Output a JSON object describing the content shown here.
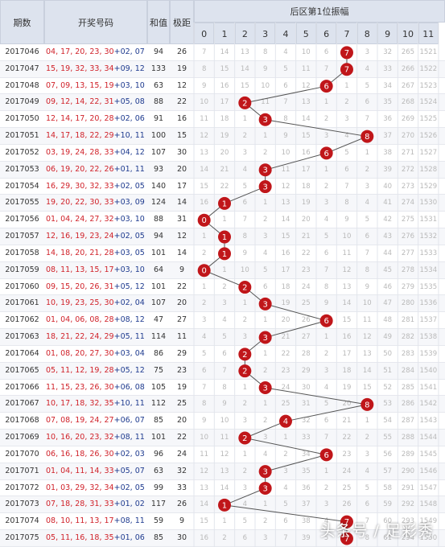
{
  "headers": {
    "period": "期数",
    "numbers": "开奖号码",
    "sum": "和值",
    "span": "极距",
    "zone": "后区第1位振幅",
    "cols": [
      "0",
      "1",
      "2",
      "3",
      "4",
      "5",
      "6",
      "7",
      "8",
      "9",
      "10",
      "11"
    ]
  },
  "colors": {
    "ball": "#c0161a",
    "line": "#555555",
    "front": "#d0222a",
    "back": "#1f3b8f",
    "header_bg": "#dde3ee"
  },
  "rows": [
    {
      "period": "2017046",
      "front": "04, 17, 20, 23, 30",
      "back": "+02, 07",
      "sum": "94",
      "span": "26",
      "pos": 7,
      "miss": [
        "7",
        "14",
        "13",
        "8",
        "4",
        "10",
        "6",
        "7",
        "3",
        "32",
        "265",
        "1521"
      ]
    },
    {
      "period": "2017047",
      "front": "15, 19, 32, 33, 34",
      "back": "+09, 12",
      "sum": "133",
      "span": "19",
      "pos": 7,
      "miss": [
        "8",
        "15",
        "14",
        "9",
        "5",
        "11",
        "7",
        "7",
        "4",
        "33",
        "266",
        "1522"
      ]
    },
    {
      "period": "2017048",
      "front": "07, 09, 13, 15, 19",
      "back": "+03, 10",
      "sum": "63",
      "span": "12",
      "pos": 6,
      "miss": [
        "9",
        "16",
        "15",
        "10",
        "6",
        "12",
        "6",
        "1",
        "5",
        "34",
        "267",
        "1523"
      ]
    },
    {
      "period": "2017049",
      "front": "09, 12, 14, 22, 31",
      "back": "+05, 08",
      "sum": "88",
      "span": "22",
      "pos": 2,
      "miss": [
        "10",
        "17",
        "2",
        "11",
        "7",
        "13",
        "1",
        "2",
        "6",
        "35",
        "268",
        "1524"
      ]
    },
    {
      "period": "2017050",
      "front": "12, 14, 17, 20, 28",
      "back": "+02, 06",
      "sum": "91",
      "span": "16",
      "pos": 3,
      "miss": [
        "11",
        "18",
        "1",
        "3",
        "8",
        "14",
        "2",
        "3",
        "7",
        "36",
        "269",
        "1525"
      ]
    },
    {
      "period": "2017051",
      "front": "14, 17, 18, 22, 29",
      "back": "+10, 11",
      "sum": "100",
      "span": "15",
      "pos": 8,
      "miss": [
        "12",
        "19",
        "2",
        "1",
        "9",
        "15",
        "3",
        "4",
        "8",
        "37",
        "270",
        "1526"
      ]
    },
    {
      "period": "2017052",
      "front": "03, 19, 24, 28, 33",
      "back": "+04, 12",
      "sum": "107",
      "span": "30",
      "pos": 6,
      "miss": [
        "13",
        "20",
        "3",
        "2",
        "10",
        "16",
        "6",
        "5",
        "1",
        "38",
        "271",
        "1527"
      ]
    },
    {
      "period": "2017053",
      "front": "06, 19, 20, 22, 26",
      "back": "+01, 11",
      "sum": "93",
      "span": "20",
      "pos": 3,
      "miss": [
        "14",
        "21",
        "4",
        "3",
        "11",
        "17",
        "1",
        "6",
        "2",
        "39",
        "272",
        "1528"
      ]
    },
    {
      "period": "2017054",
      "front": "16, 29, 30, 32, 33",
      "back": "+02, 05",
      "sum": "140",
      "span": "17",
      "pos": 3,
      "miss": [
        "15",
        "22",
        "5",
        "3",
        "12",
        "18",
        "2",
        "7",
        "3",
        "40",
        "273",
        "1529"
      ]
    },
    {
      "period": "2017055",
      "front": "19, 20, 22, 30, 33",
      "back": "+03, 09",
      "sum": "124",
      "span": "14",
      "pos": 1,
      "miss": [
        "16",
        "1",
        "6",
        "1",
        "13",
        "19",
        "3",
        "8",
        "4",
        "41",
        "274",
        "1530"
      ]
    },
    {
      "period": "2017056",
      "front": "01, 04, 24, 27, 32",
      "back": "+03, 10",
      "sum": "88",
      "span": "31",
      "pos": 0,
      "miss": [
        "0",
        "1",
        "7",
        "2",
        "14",
        "20",
        "4",
        "9",
        "5",
        "42",
        "275",
        "1531"
      ]
    },
    {
      "period": "2017057",
      "front": "12, 16, 19, 23, 24",
      "back": "+02, 05",
      "sum": "94",
      "span": "12",
      "pos": 1,
      "miss": [
        "1",
        "1",
        "8",
        "3",
        "15",
        "21",
        "5",
        "10",
        "6",
        "43",
        "276",
        "1532"
      ]
    },
    {
      "period": "2017058",
      "front": "14, 18, 20, 21, 28",
      "back": "+03, 05",
      "sum": "101",
      "span": "14",
      "pos": 1,
      "miss": [
        "2",
        "1",
        "9",
        "4",
        "16",
        "22",
        "6",
        "11",
        "7",
        "44",
        "277",
        "1533"
      ]
    },
    {
      "period": "2017059",
      "front": "08, 11, 13, 15, 17",
      "back": "+03, 10",
      "sum": "64",
      "span": "9",
      "pos": 0,
      "miss": [
        "0",
        "1",
        "10",
        "5",
        "17",
        "23",
        "7",
        "12",
        "8",
        "45",
        "278",
        "1534"
      ]
    },
    {
      "period": "2017060",
      "front": "09, 15, 20, 26, 31",
      "back": "+05, 12",
      "sum": "101",
      "span": "22",
      "pos": 2,
      "miss": [
        "1",
        "2",
        "2",
        "6",
        "18",
        "24",
        "8",
        "13",
        "9",
        "46",
        "279",
        "1535"
      ]
    },
    {
      "period": "2017061",
      "front": "10, 19, 23, 25, 30",
      "back": "+02, 04",
      "sum": "107",
      "span": "20",
      "pos": 3,
      "miss": [
        "2",
        "3",
        "1",
        "3",
        "19",
        "25",
        "9",
        "14",
        "10",
        "47",
        "280",
        "1536"
      ]
    },
    {
      "period": "2017062",
      "front": "01, 04, 06, 08, 28",
      "back": "+08, 12",
      "sum": "47",
      "span": "27",
      "pos": 6,
      "miss": [
        "3",
        "4",
        "2",
        "1",
        "20",
        "26",
        "6",
        "15",
        "11",
        "48",
        "281",
        "1537"
      ]
    },
    {
      "period": "2017063",
      "front": "18, 21, 22, 24, 29",
      "back": "+05, 11",
      "sum": "114",
      "span": "11",
      "pos": 3,
      "miss": [
        "4",
        "5",
        "3",
        "3",
        "21",
        "27",
        "1",
        "16",
        "12",
        "49",
        "282",
        "1538"
      ]
    },
    {
      "period": "2017064",
      "front": "01, 08, 20, 27, 30",
      "back": "+03, 04",
      "sum": "86",
      "span": "29",
      "pos": 2,
      "miss": [
        "5",
        "6",
        "2",
        "1",
        "22",
        "28",
        "2",
        "17",
        "13",
        "50",
        "283",
        "1539"
      ]
    },
    {
      "period": "2017065",
      "front": "05, 11, 12, 19, 28",
      "back": "+05, 12",
      "sum": "75",
      "span": "23",
      "pos": 2,
      "miss": [
        "6",
        "7",
        "2",
        "2",
        "23",
        "29",
        "3",
        "18",
        "14",
        "51",
        "284",
        "1540"
      ]
    },
    {
      "period": "2017066",
      "front": "11, 15, 23, 26, 30",
      "back": "+06, 08",
      "sum": "105",
      "span": "19",
      "pos": 3,
      "miss": [
        "7",
        "8",
        "1",
        "3",
        "24",
        "30",
        "4",
        "19",
        "15",
        "52",
        "285",
        "1541"
      ]
    },
    {
      "period": "2017067",
      "front": "10, 17, 18, 32, 35",
      "back": "+10, 11",
      "sum": "112",
      "span": "25",
      "pos": 8,
      "miss": [
        "8",
        "9",
        "2",
        "1",
        "25",
        "31",
        "5",
        "20",
        "8",
        "53",
        "286",
        "1542"
      ]
    },
    {
      "period": "2017068",
      "front": "07, 08, 19, 24, 27",
      "back": "+06, 07",
      "sum": "85",
      "span": "20",
      "pos": 4,
      "miss": [
        "9",
        "10",
        "3",
        "2",
        "4",
        "32",
        "6",
        "21",
        "1",
        "54",
        "287",
        "1543"
      ]
    },
    {
      "period": "2017069",
      "front": "10, 16, 20, 23, 32",
      "back": "+08, 11",
      "sum": "101",
      "span": "22",
      "pos": 2,
      "miss": [
        "10",
        "11",
        "2",
        "3",
        "1",
        "33",
        "7",
        "22",
        "2",
        "55",
        "288",
        "1544"
      ]
    },
    {
      "period": "2017070",
      "front": "06, 16, 18, 26, 30",
      "back": "+02, 03",
      "sum": "96",
      "span": "24",
      "pos": 6,
      "miss": [
        "11",
        "12",
        "1",
        "4",
        "2",
        "34",
        "6",
        "23",
        "3",
        "56",
        "289",
        "1545"
      ]
    },
    {
      "period": "2017071",
      "front": "01, 04, 11, 14, 33",
      "back": "+05, 07",
      "sum": "63",
      "span": "32",
      "pos": 3,
      "miss": [
        "12",
        "13",
        "2",
        "3",
        "3",
        "35",
        "1",
        "24",
        "4",
        "57",
        "290",
        "1546"
      ]
    },
    {
      "period": "2017072",
      "front": "01, 03, 29, 32, 34",
      "back": "+02, 05",
      "sum": "99",
      "span": "33",
      "pos": 3,
      "miss": [
        "13",
        "14",
        "3",
        "3",
        "4",
        "36",
        "2",
        "25",
        "5",
        "58",
        "291",
        "1547"
      ]
    },
    {
      "period": "2017073",
      "front": "07, 18, 28, 31, 33",
      "back": "+01, 02",
      "sum": "117",
      "span": "26",
      "pos": 1,
      "miss": [
        "14",
        "1",
        "4",
        "1",
        "5",
        "37",
        "3",
        "26",
        "6",
        "59",
        "292",
        "1548"
      ]
    },
    {
      "period": "2017074",
      "front": "08, 10, 11, 13, 17",
      "back": "+08, 11",
      "sum": "59",
      "span": "9",
      "pos": 7,
      "miss": [
        "15",
        "1",
        "5",
        "2",
        "6",
        "38",
        "4",
        "7",
        "7",
        "60",
        "293",
        "1549"
      ]
    },
    {
      "period": "2017075",
      "front": "05, 11, 16, 18, 35",
      "back": "+01, 06",
      "sum": "85",
      "span": "30",
      "pos": 7,
      "miss": [
        "16",
        "2",
        "6",
        "3",
        "7",
        "39",
        "5",
        "7",
        "8",
        "61",
        "294",
        "1550"
      ]
    }
  ],
  "chart_data": {
    "type": "line",
    "title": "后区第1位振幅",
    "xlabel": "",
    "ylabel": "",
    "categories": [
      "2017046",
      "2017047",
      "2017048",
      "2017049",
      "2017050",
      "2017051",
      "2017052",
      "2017053",
      "2017054",
      "2017055",
      "2017056",
      "2017057",
      "2017058",
      "2017059",
      "2017060",
      "2017061",
      "2017062",
      "2017063",
      "2017064",
      "2017065",
      "2017066",
      "2017067",
      "2017068",
      "2017069",
      "2017070",
      "2017071",
      "2017072",
      "2017073",
      "2017074",
      "2017075"
    ],
    "values": [
      7,
      7,
      6,
      2,
      3,
      8,
      6,
      3,
      3,
      1,
      0,
      1,
      1,
      0,
      2,
      3,
      6,
      3,
      2,
      2,
      3,
      8,
      4,
      2,
      6,
      3,
      3,
      1,
      7,
      7
    ],
    "ylim": [
      0,
      11
    ]
  },
  "watermark": "头条号 / 足彩秀"
}
